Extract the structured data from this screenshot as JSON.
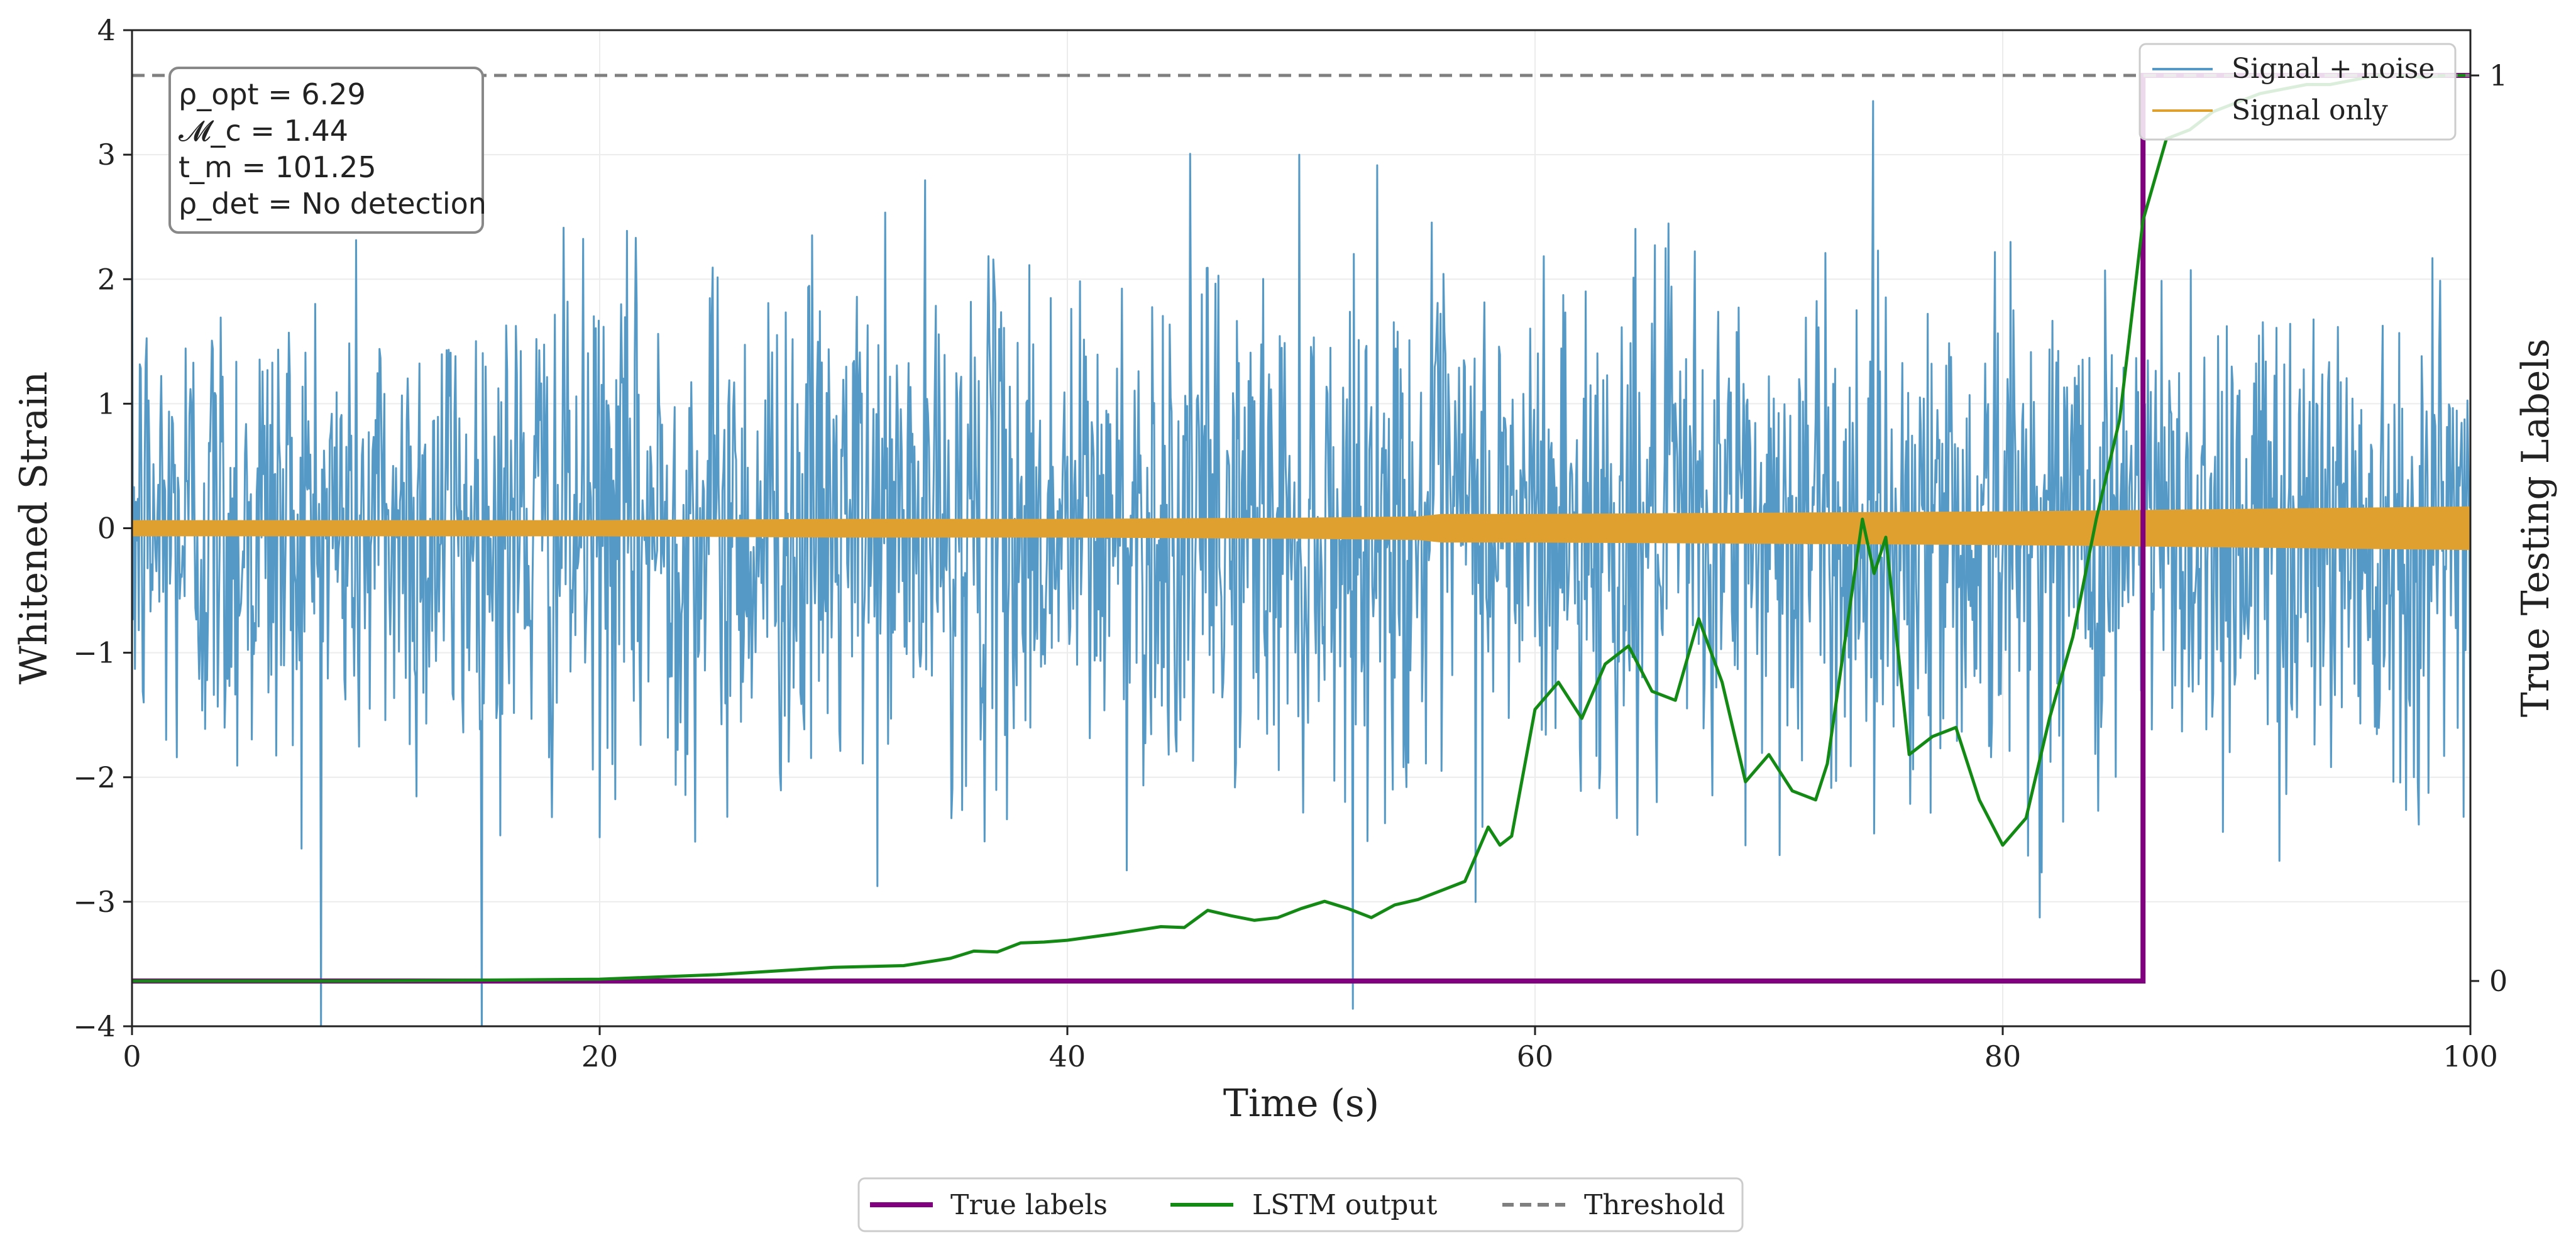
{
  "chart_data": {
    "type": "line",
    "xlabel": "Time (s)",
    "ylabel": "Whitened Strain",
    "y2label": "True Testing Labels",
    "xlim": [
      0,
      100
    ],
    "ylim": [
      -4,
      4
    ],
    "y2lim": [
      -0.05,
      1.05
    ],
    "xticks": [
      0,
      20,
      40,
      60,
      80,
      100
    ],
    "yticks": [
      -4,
      -3,
      -2,
      -1,
      0,
      1,
      2,
      3,
      4
    ],
    "y2ticks": [
      0,
      1
    ],
    "tick_labels": {
      "x": [
        "0",
        "20",
        "40",
        "60",
        "80",
        "100"
      ],
      "y": [
        "−4",
        "−3",
        "−2",
        "−1",
        "0",
        "1",
        "2",
        "3",
        "4"
      ],
      "y2": [
        "0",
        "1"
      ]
    },
    "grid": true,
    "info_box": {
      "lines": [
        "ρ_opt = 6.29",
        "𝓜_c = 1.44",
        "t_m = 101.25",
        "ρ_det = No detection"
      ]
    },
    "upper_legend": {
      "placement": "top-right",
      "entries": [
        {
          "label": "Signal + noise",
          "color": "#5599c7"
        },
        {
          "label": "Signal only",
          "color": "#e0a030"
        }
      ]
    },
    "lower_legend": {
      "placement": "bottom-center",
      "entries": [
        {
          "label": "True labels",
          "color": "#800080",
          "style": "solid"
        },
        {
          "label": "LSTM output",
          "color": "#138a13",
          "style": "solid"
        },
        {
          "label": "Threshold",
          "color": "#7f7f7f",
          "style": "dashed"
        }
      ]
    },
    "series": [
      {
        "name": "Signal + noise",
        "axis": "left",
        "color": "#5599c7",
        "kind": "noise",
        "std": 1.0,
        "x_range": [
          0,
          100
        ]
      },
      {
        "name": "Signal only",
        "axis": "left",
        "color": "#e0a030",
        "kind": "envelope",
        "x": [
          0,
          10,
          20,
          30,
          40,
          50,
          55,
          56,
          60,
          70,
          80,
          85,
          90,
          95,
          100
        ],
        "amplitude": [
          0.06,
          0.06,
          0.06,
          0.07,
          0.07,
          0.08,
          0.09,
          0.11,
          0.11,
          0.12,
          0.13,
          0.14,
          0.15,
          0.16,
          0.17
        ]
      },
      {
        "name": "True labels",
        "axis": "right",
        "color": "#800080",
        "kind": "step",
        "x": [
          0,
          86,
          86,
          100
        ],
        "y": [
          0,
          0,
          1,
          1
        ]
      },
      {
        "name": "LSTM output",
        "axis": "right",
        "color": "#138a13",
        "kind": "line",
        "x": [
          0,
          10,
          20,
          25,
          30,
          33,
          35,
          36,
          37,
          38,
          39,
          40,
          42,
          44,
          45,
          46,
          47,
          48,
          49,
          50,
          51,
          52,
          53,
          54,
          55,
          56,
          57,
          58,
          58.5,
          59,
          60,
          61,
          62,
          63,
          64,
          65,
          66,
          67,
          68,
          69,
          70,
          71,
          72,
          72.5,
          73,
          73.5,
          74,
          74.5,
          75,
          75.5,
          76,
          77,
          78,
          79,
          80,
          81,
          82,
          83,
          84,
          85,
          86,
          87,
          88,
          89,
          90,
          91,
          92,
          93,
          94,
          95,
          96,
          97,
          98,
          99,
          100
        ],
        "y": [
          0,
          0,
          0.002,
          0.007,
          0.015,
          0.017,
          0.025,
          0.033,
          0.032,
          0.042,
          0.043,
          0.045,
          0.052,
          0.06,
          0.059,
          0.078,
          0.072,
          0.067,
          0.07,
          0.08,
          0.088,
          0.08,
          0.07,
          0.084,
          0.09,
          0.1,
          0.11,
          0.17,
          0.15,
          0.16,
          0.3,
          0.33,
          0.29,
          0.35,
          0.37,
          0.32,
          0.31,
          0.4,
          0.33,
          0.22,
          0.25,
          0.21,
          0.2,
          0.24,
          0.33,
          0.42,
          0.51,
          0.45,
          0.49,
          0.37,
          0.25,
          0.27,
          0.28,
          0.2,
          0.15,
          0.18,
          0.29,
          0.38,
          0.51,
          0.62,
          0.84,
          0.93,
          0.94,
          0.96,
          0.97,
          0.98,
          0.985,
          0.99,
          0.99,
          0.995,
          1.0,
          1.0,
          0.998,
          1.0,
          1.0
        ]
      },
      {
        "name": "Threshold",
        "axis": "right",
        "color": "#7f7f7f",
        "kind": "hline",
        "y": 1.0
      }
    ]
  }
}
